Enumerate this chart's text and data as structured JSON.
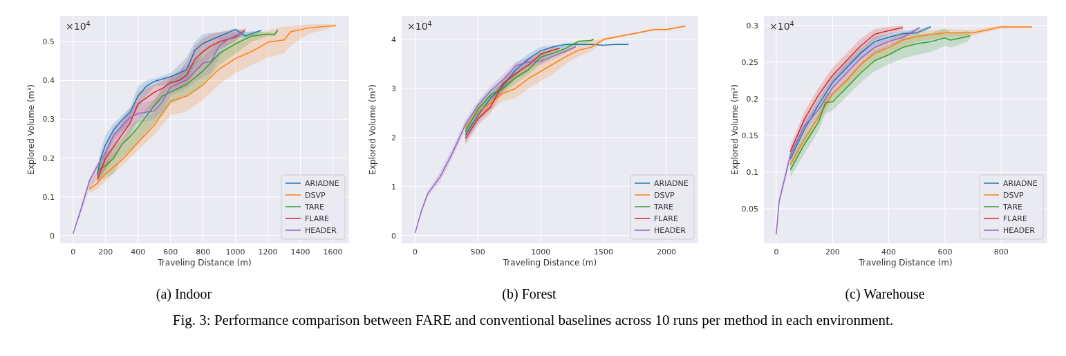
{
  "chart_data": [
    {
      "type": "line",
      "title": "(a) Indoor",
      "xlabel": "Traveling Distance (m)",
      "ylabel": "Explored Volume (m³)",
      "annotations": [
        "×10$^{4}$"
      ],
      "xlim": [
        -80,
        1700
      ],
      "ylim": [
        -0.02,
        0.567
      ],
      "xticks": [
        0,
        200,
        400,
        600,
        800,
        1000,
        1200,
        1400,
        1600
      ],
      "yticks": [
        0,
        0.1,
        0.2,
        0.3,
        0.4,
        0.5
      ],
      "grid": true,
      "legend": "bottom right",
      "series": [
        {
          "name": "ARIADNE",
          "color": "#1f77b4",
          "x": [
            150,
            170,
            200,
            250,
            300,
            350,
            400,
            450,
            500,
            600,
            700,
            750,
            800,
            900,
            1000,
            1060,
            1160
          ],
          "values": [
            0.156,
            0.2,
            0.235,
            0.273,
            0.298,
            0.318,
            0.36,
            0.385,
            0.398,
            0.41,
            0.428,
            0.478,
            0.496,
            0.514,
            0.532,
            0.515,
            0.53
          ],
          "lower": [
            0.14,
            0.17,
            0.2,
            0.25,
            0.27,
            0.29,
            0.33,
            0.36,
            0.385,
            0.39,
            0.4,
            0.44,
            0.47,
            0.5,
            0.515,
            0.51,
            0.525
          ],
          "upper": [
            0.17,
            0.22,
            0.26,
            0.29,
            0.31,
            0.33,
            0.385,
            0.4,
            0.405,
            0.42,
            0.46,
            0.5,
            0.52,
            0.525,
            0.535,
            0.525,
            0.53
          ]
        },
        {
          "name": "DSVP",
          "color": "#ff7f0e",
          "x": [
            100,
            150,
            200,
            300,
            400,
            500,
            600,
            700,
            800,
            900,
            1000,
            1100,
            1200,
            1300,
            1340,
            1450,
            1620
          ],
          "values": [
            0.12,
            0.135,
            0.16,
            0.195,
            0.24,
            0.285,
            0.347,
            0.36,
            0.389,
            0.43,
            0.457,
            0.475,
            0.499,
            0.505,
            0.526,
            0.536,
            0.542
          ],
          "lower": [
            0.11,
            0.12,
            0.14,
            0.18,
            0.22,
            0.26,
            0.31,
            0.32,
            0.35,
            0.39,
            0.42,
            0.44,
            0.46,
            0.47,
            0.49,
            0.52,
            0.54
          ],
          "upper": [
            0.13,
            0.17,
            0.19,
            0.23,
            0.28,
            0.32,
            0.37,
            0.4,
            0.44,
            0.47,
            0.5,
            0.52,
            0.53,
            0.54,
            0.54,
            0.545,
            0.545
          ]
        },
        {
          "name": "TARE",
          "color": "#2ca02c",
          "x": [
            150,
            200,
            250,
            300,
            350,
            400,
            500,
            550,
            600,
            700,
            800,
            900,
            1000,
            1100,
            1200,
            1240,
            1260
          ],
          "values": [
            0.168,
            0.18,
            0.2,
            0.235,
            0.255,
            0.28,
            0.335,
            0.36,
            0.37,
            0.39,
            0.425,
            0.47,
            0.495,
            0.515,
            0.52,
            0.518,
            0.53
          ],
          "lower": [
            0.14,
            0.15,
            0.16,
            0.2,
            0.22,
            0.24,
            0.29,
            0.31,
            0.34,
            0.36,
            0.39,
            0.44,
            0.47,
            0.5,
            0.515,
            0.515,
            0.525
          ],
          "upper": [
            0.18,
            0.21,
            0.23,
            0.25,
            0.28,
            0.3,
            0.35,
            0.38,
            0.4,
            0.43,
            0.47,
            0.5,
            0.52,
            0.525,
            0.525,
            0.525,
            0.535
          ]
        },
        {
          "name": "FLARE",
          "color": "#d62728",
          "x": [
            150,
            200,
            250,
            300,
            350,
            400,
            450,
            500,
            550,
            600,
            650,
            700,
            750,
            800,
            850,
            900,
            1000,
            1060
          ],
          "values": [
            0.145,
            0.2,
            0.23,
            0.26,
            0.29,
            0.34,
            0.355,
            0.37,
            0.38,
            0.395,
            0.4,
            0.414,
            0.455,
            0.475,
            0.49,
            0.5,
            0.512,
            0.53
          ],
          "lower": [
            0.13,
            0.17,
            0.2,
            0.23,
            0.26,
            0.3,
            0.32,
            0.33,
            0.35,
            0.37,
            0.38,
            0.39,
            0.42,
            0.44,
            0.46,
            0.48,
            0.5,
            0.525
          ],
          "upper": [
            0.17,
            0.22,
            0.26,
            0.29,
            0.32,
            0.37,
            0.38,
            0.39,
            0.4,
            0.41,
            0.42,
            0.45,
            0.49,
            0.51,
            0.52,
            0.525,
            0.53,
            0.535
          ]
        },
        {
          "name": "HEADER",
          "color": "#9467bd",
          "x": [
            0,
            50,
            100,
            150,
            200,
            250,
            300,
            350,
            400,
            500,
            550,
            600,
            700,
            800,
            850,
            900,
            950,
            1050
          ],
          "values": [
            0.005,
            0.07,
            0.14,
            0.18,
            0.215,
            0.26,
            0.282,
            0.305,
            0.315,
            0.322,
            0.345,
            0.383,
            0.402,
            0.445,
            0.45,
            0.49,
            0.505,
            0.525
          ],
          "lower": [
            0.005,
            0.06,
            0.12,
            0.15,
            0.17,
            0.23,
            0.26,
            0.28,
            0.29,
            0.3,
            0.32,
            0.36,
            0.38,
            0.41,
            0.42,
            0.46,
            0.49,
            0.52
          ],
          "upper": [
            0.005,
            0.08,
            0.15,
            0.19,
            0.23,
            0.28,
            0.3,
            0.33,
            0.34,
            0.35,
            0.38,
            0.41,
            0.44,
            0.46,
            0.48,
            0.51,
            0.52,
            0.53
          ]
        }
      ]
    },
    {
      "type": "line",
      "title": "(b) Forest",
      "xlabel": "Traveling Distance (m)",
      "ylabel": "Explored Volume (m³)",
      "annotations": [
        "×10$^{4}$"
      ],
      "xlim": [
        -107,
        2253
      ],
      "ylim": [
        -0.16,
        4.48
      ],
      "xticks": [
        0,
        500,
        1000,
        1500,
        2000
      ],
      "yticks": [
        0,
        1,
        2,
        3,
        4
      ],
      "grid": true,
      "legend": "bottom right",
      "series": [
        {
          "name": "ARIADNE",
          "color": "#1f77b4",
          "x": [
            400,
            500,
            600,
            700,
            800,
            900,
            1000,
            1100,
            1200,
            1300,
            1400,
            1500,
            1600,
            1700
          ],
          "values": [
            2.05,
            2.45,
            2.8,
            3.05,
            3.38,
            3.6,
            3.77,
            3.85,
            3.9,
            3.9,
            3.9,
            3.88,
            3.9,
            3.9
          ],
          "lower": [
            1.9,
            2.3,
            2.65,
            2.95,
            3.25,
            3.5,
            3.65,
            3.78,
            3.85,
            3.88,
            3.88,
            3.88,
            3.9,
            3.9
          ],
          "upper": [
            2.2,
            2.55,
            2.9,
            3.15,
            3.5,
            3.7,
            3.85,
            3.88,
            3.92,
            3.92,
            3.9,
            3.9,
            3.9,
            3.9
          ]
        },
        {
          "name": "DSVP",
          "color": "#ff7f0e",
          "x": [
            400,
            500,
            600,
            700,
            800,
            900,
            1000,
            1100,
            1200,
            1300,
            1400,
            1500,
            1600,
            1700,
            1800,
            1900,
            2000,
            2100,
            2150
          ],
          "values": [
            2.19,
            2.52,
            2.7,
            2.9,
            3.0,
            3.2,
            3.35,
            3.5,
            3.65,
            3.78,
            3.84,
            4.0,
            4.05,
            4.1,
            4.15,
            4.2,
            4.2,
            4.25,
            4.27
          ],
          "lower": [
            2.05,
            2.35,
            2.55,
            2.75,
            2.8,
            3.0,
            3.15,
            3.3,
            3.5,
            3.65,
            3.75,
            3.97,
            4.03,
            4.08,
            4.13,
            4.18,
            4.18,
            4.23,
            4.25
          ],
          "upper": [
            2.3,
            2.6,
            2.9,
            3.1,
            3.25,
            3.4,
            3.55,
            3.7,
            3.8,
            3.9,
            3.98,
            4.03,
            4.07,
            4.12,
            4.17,
            4.22,
            4.22,
            4.27,
            4.29
          ]
        },
        {
          "name": "TARE",
          "color": "#2ca02c",
          "x": [
            400,
            500,
            600,
            700,
            800,
            900,
            1000,
            1100,
            1200,
            1300,
            1400,
            1420
          ],
          "values": [
            2.12,
            2.58,
            2.87,
            3.0,
            3.22,
            3.38,
            3.64,
            3.72,
            3.82,
            3.96,
            3.98,
            4.0
          ],
          "lower": [
            2.0,
            2.45,
            2.75,
            2.9,
            3.1,
            3.28,
            3.5,
            3.65,
            3.75,
            3.9,
            3.95,
            3.98
          ],
          "upper": [
            2.25,
            2.7,
            2.98,
            3.12,
            3.35,
            3.5,
            3.72,
            3.8,
            3.88,
            3.98,
            4.0,
            4.02
          ]
        },
        {
          "name": "FLARE",
          "color": "#d62728",
          "x": [
            400,
            500,
            600,
            700,
            800,
            900,
            1000,
            1100,
            1150
          ],
          "values": [
            1.98,
            2.38,
            2.62,
            3.1,
            3.3,
            3.47,
            3.7,
            3.78,
            3.82
          ],
          "lower": [
            1.85,
            2.25,
            2.5,
            2.95,
            3.2,
            3.35,
            3.58,
            3.72,
            3.8
          ],
          "upper": [
            2.1,
            2.5,
            2.75,
            3.2,
            3.4,
            3.58,
            3.75,
            3.84,
            3.84
          ]
        },
        {
          "name": "HEADER",
          "color": "#9467bd",
          "x": [
            0,
            50,
            100,
            200,
            300,
            400,
            500,
            600,
            700,
            800,
            900,
            1000,
            1100,
            1200,
            1280
          ],
          "values": [
            0.05,
            0.5,
            0.85,
            1.2,
            1.7,
            2.26,
            2.65,
            2.95,
            3.18,
            3.46,
            3.54,
            3.56,
            3.66,
            3.76,
            3.85
          ],
          "lower": [
            0.05,
            0.45,
            0.8,
            1.1,
            1.6,
            2.15,
            2.5,
            2.8,
            3.05,
            3.35,
            3.45,
            3.48,
            3.6,
            3.72,
            3.83
          ],
          "upper": [
            0.05,
            0.55,
            0.9,
            1.3,
            1.8,
            2.35,
            2.75,
            3.05,
            3.28,
            3.55,
            3.62,
            3.64,
            3.72,
            3.8,
            3.88
          ]
        }
      ]
    },
    {
      "type": "line",
      "title": "(c) Warehouse",
      "xlabel": "Traveling Distance (m)",
      "ylabel": "Explored Volume (m³)",
      "annotations": [
        "×10$^{4}$",
        "Fig. 3: Performance comparison between FARE and conventional baselines across 10 runs per method in each environment."
      ],
      "xlim": [
        -44,
        964
      ],
      "ylim": [
        0.003,
        0.313
      ],
      "xticks": [
        0,
        200,
        400,
        600,
        800
      ],
      "yticks": [
        0.05,
        0.1,
        0.15,
        0.2,
        0.25,
        0.3
      ],
      "grid": true,
      "legend": "bottom right",
      "series": [
        {
          "name": "ARIADNE",
          "color": "#1f77b4",
          "x": [
            50,
            100,
            150,
            200,
            250,
            300,
            350,
            400,
            450,
            500,
            550
          ],
          "values": [
            0.118,
            0.158,
            0.192,
            0.222,
            0.242,
            0.262,
            0.278,
            0.284,
            0.289,
            0.29,
            0.298
          ],
          "lower": [
            0.11,
            0.15,
            0.184,
            0.214,
            0.234,
            0.255,
            0.271,
            0.279,
            0.285,
            0.287,
            0.296
          ],
          "upper": [
            0.126,
            0.166,
            0.2,
            0.23,
            0.25,
            0.269,
            0.285,
            0.289,
            0.293,
            0.294,
            0.3
          ]
        },
        {
          "name": "DSVP",
          "color": "#ff7f0e",
          "x": [
            50,
            100,
            150,
            200,
            250,
            300,
            350,
            400,
            450,
            500,
            600,
            700,
            800,
            910
          ],
          "values": [
            0.11,
            0.145,
            0.175,
            0.207,
            0.225,
            0.247,
            0.262,
            0.27,
            0.28,
            0.285,
            0.29,
            0.29,
            0.298,
            0.298
          ],
          "lower": [
            0.103,
            0.137,
            0.167,
            0.199,
            0.215,
            0.237,
            0.252,
            0.26,
            0.27,
            0.278,
            0.284,
            0.286,
            0.296,
            0.297
          ],
          "upper": [
            0.117,
            0.153,
            0.183,
            0.215,
            0.235,
            0.257,
            0.272,
            0.28,
            0.29,
            0.292,
            0.295,
            0.294,
            0.3,
            0.299
          ]
        },
        {
          "name": "TARE",
          "color": "#2ca02c",
          "x": [
            50,
            100,
            150,
            175,
            200,
            250,
            300,
            350,
            400,
            450,
            500,
            550,
            600,
            620,
            680,
            690
          ],
          "values": [
            0.103,
            0.138,
            0.168,
            0.195,
            0.196,
            0.215,
            0.235,
            0.252,
            0.26,
            0.27,
            0.275,
            0.278,
            0.283,
            0.28,
            0.285,
            0.286
          ],
          "lower": [
            0.093,
            0.125,
            0.156,
            0.18,
            0.184,
            0.203,
            0.222,
            0.238,
            0.247,
            0.255,
            0.26,
            0.264,
            0.272,
            0.27,
            0.278,
            0.283
          ],
          "upper": [
            0.113,
            0.151,
            0.18,
            0.207,
            0.208,
            0.227,
            0.248,
            0.266,
            0.273,
            0.283,
            0.288,
            0.29,
            0.296,
            0.29,
            0.292,
            0.29
          ]
        },
        {
          "name": "FLARE",
          "color": "#d62728",
          "x": [
            50,
            100,
            150,
            200,
            250,
            300,
            350,
            400,
            450
          ],
          "values": [
            0.128,
            0.172,
            0.205,
            0.232,
            0.252,
            0.272,
            0.288,
            0.293,
            0.297
          ],
          "lower": [
            0.12,
            0.162,
            0.195,
            0.222,
            0.242,
            0.262,
            0.28,
            0.287,
            0.294
          ],
          "upper": [
            0.136,
            0.182,
            0.215,
            0.242,
            0.262,
            0.282,
            0.295,
            0.298,
            0.3
          ]
        },
        {
          "name": "HEADER",
          "color": "#9467bd",
          "x": [
            0,
            10,
            50,
            100,
            150,
            200,
            250,
            300,
            350,
            400,
            450,
            510
          ],
          "values": [
            0.015,
            0.06,
            0.123,
            0.163,
            0.185,
            0.215,
            0.235,
            0.255,
            0.27,
            0.278,
            0.284,
            0.297
          ],
          "lower": [
            0.015,
            0.055,
            0.115,
            0.155,
            0.177,
            0.205,
            0.223,
            0.245,
            0.262,
            0.272,
            0.28,
            0.295
          ],
          "upper": [
            0.015,
            0.065,
            0.131,
            0.171,
            0.193,
            0.225,
            0.247,
            0.265,
            0.278,
            0.284,
            0.288,
            0.299
          ]
        }
      ]
    }
  ]
}
